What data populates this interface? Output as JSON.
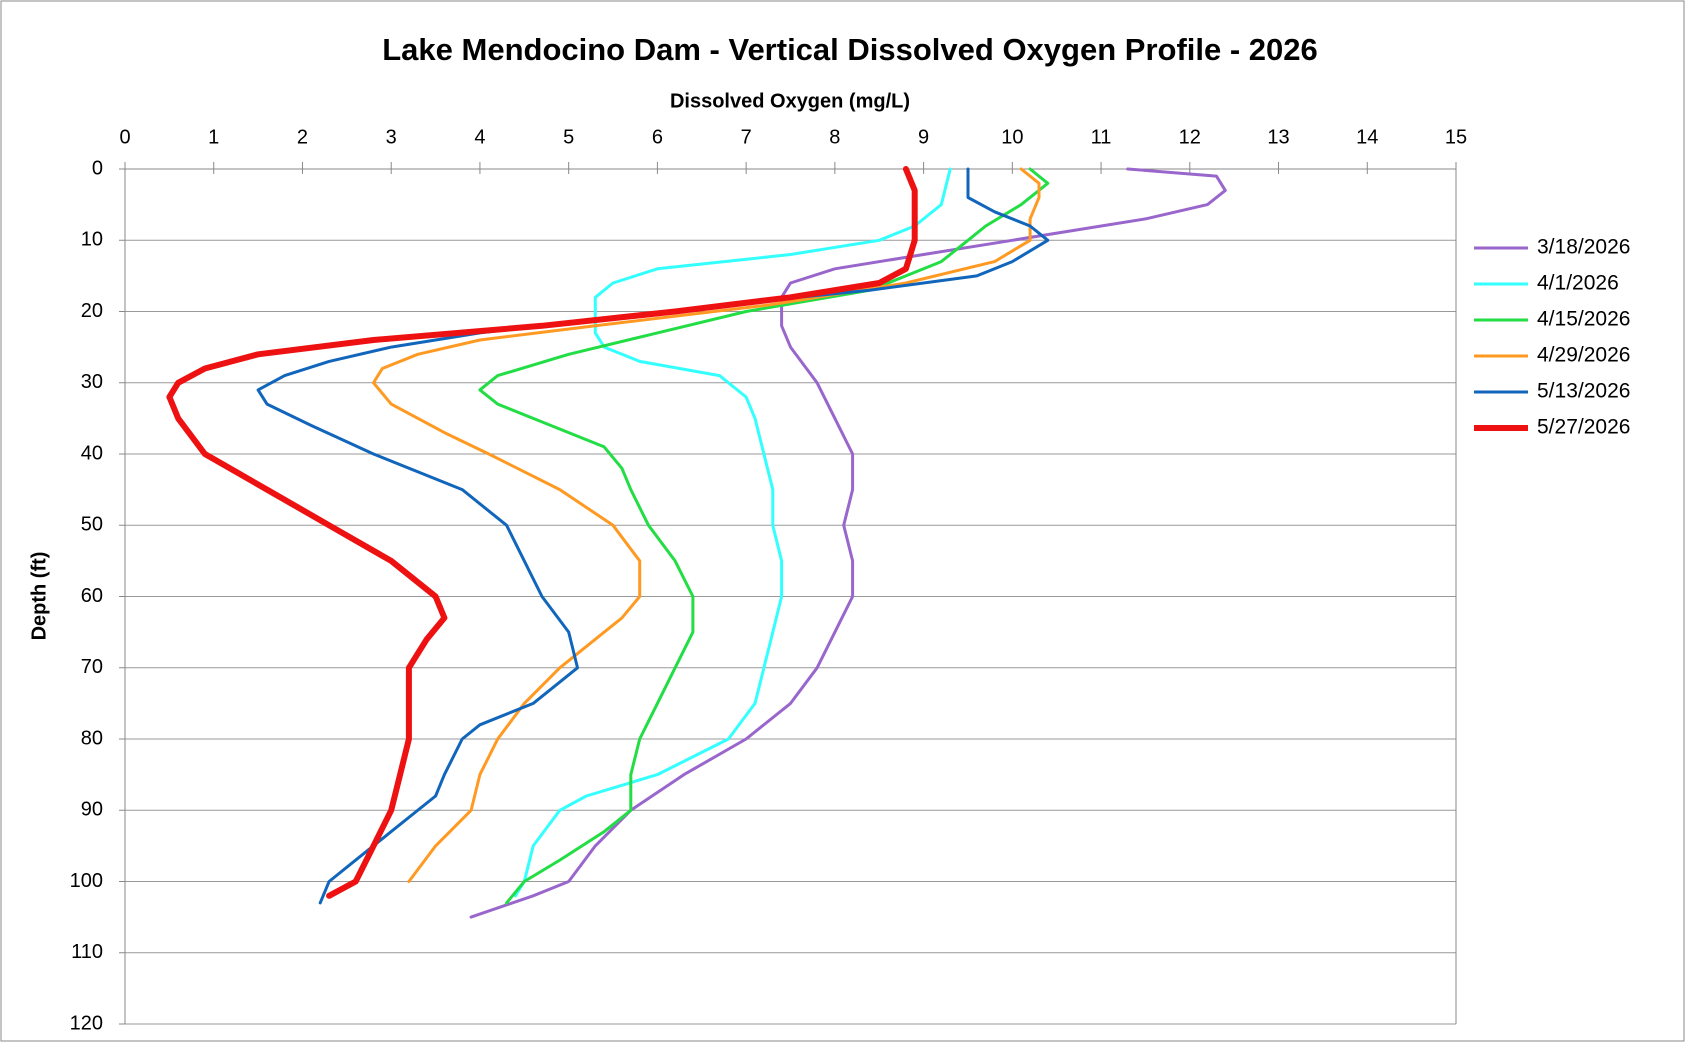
{
  "chart_data": {
    "type": "line",
    "title": "Lake Mendocino Dam - Vertical Dissolved Oxygen Profile - 2026",
    "x_label": "Dissolved Oxygen (mg/L)",
    "y_label": "Depth (ft)",
    "xlim": [
      0,
      15
    ],
    "xticks": [
      0,
      1,
      2,
      3,
      4,
      5,
      6,
      7,
      8,
      9,
      10,
      11,
      12,
      13,
      14,
      15
    ],
    "ylim": [
      0,
      120
    ],
    "yticks": [
      0,
      10,
      20,
      30,
      40,
      50,
      60,
      70,
      80,
      90,
      100,
      110,
      120
    ],
    "y_inverted": true,
    "grid": true,
    "legend": "right",
    "series": [
      {
        "name": "3/18/2026",
        "color": "#9966cc",
        "width": 3,
        "x": [
          11.3,
          12.3,
          12.4,
          12.2,
          11.5,
          10.0,
          9.0,
          8.0,
          7.5,
          7.4,
          7.4,
          7.4,
          7.5,
          7.8,
          8.0,
          8.2,
          8.2,
          8.1,
          8.2,
          8.2,
          8.0,
          7.8,
          7.5,
          7.0,
          6.3,
          5.7,
          5.3,
          5.0,
          4.6,
          3.9
        ],
        "values": [
          0,
          1,
          3,
          5,
          7,
          10,
          12,
          14,
          16,
          18,
          20,
          22,
          25,
          30,
          35,
          40,
          45,
          50,
          55,
          60,
          65,
          70,
          75,
          80,
          85,
          90,
          95,
          100,
          102,
          105
        ]
      },
      {
        "name": "4/1/2026",
        "color": "#33ffff",
        "width": 3,
        "x": [
          9.3,
          9.2,
          8.9,
          8.5,
          7.5,
          6.0,
          5.5,
          5.3,
          5.3,
          5.3,
          5.4,
          5.8,
          6.7,
          7.0,
          7.1,
          7.2,
          7.3,
          7.3,
          7.4,
          7.4,
          7.3,
          7.2,
          7.1,
          6.8,
          6.0,
          5.2,
          4.9,
          4.6,
          4.5,
          4.4
        ],
        "values": [
          0,
          5,
          8,
          10,
          12,
          14,
          16,
          18,
          20,
          23,
          25,
          27,
          29,
          32,
          35,
          40,
          45,
          50,
          55,
          60,
          65,
          70,
          75,
          80,
          85,
          88,
          90,
          95,
          100,
          102
        ]
      },
      {
        "name": "4/15/2026",
        "color": "#22dd44",
        "width": 3,
        "x": [
          10.2,
          10.4,
          10.1,
          9.7,
          9.5,
          9.2,
          8.8,
          8.4,
          7.0,
          6.0,
          5.0,
          4.2,
          4.0,
          4.2,
          4.8,
          5.4,
          5.6,
          5.7,
          5.9,
          6.2,
          6.4,
          6.4,
          6.2,
          6.0,
          5.8,
          5.7,
          5.7,
          5.4,
          4.9,
          4.5,
          4.3
        ],
        "values": [
          0,
          2,
          5,
          8,
          10,
          13,
          15,
          17,
          20,
          23,
          26,
          29,
          31,
          33,
          36,
          39,
          42,
          45,
          50,
          55,
          60,
          65,
          70,
          75,
          80,
          85,
          90,
          93,
          97,
          100,
          103
        ]
      },
      {
        "name": "4/29/2026",
        "color": "#ff9922",
        "width": 3,
        "x": [
          10.1,
          10.3,
          10.3,
          10.2,
          10.2,
          9.8,
          8.8,
          7.3,
          5.3,
          4.0,
          3.3,
          2.9,
          2.8,
          3.0,
          3.6,
          4.1,
          4.9,
          5.5,
          5.8,
          5.8,
          5.6,
          5.2,
          4.9,
          4.5,
          4.2,
          4.0,
          3.9,
          3.5,
          3.2
        ],
        "values": [
          0,
          2,
          4,
          7,
          10,
          13,
          16,
          19,
          22,
          24,
          26,
          28,
          30,
          33,
          37,
          40,
          45,
          50,
          55,
          60,
          63,
          67,
          70,
          75,
          80,
          85,
          90,
          95,
          100
        ]
      },
      {
        "name": "5/13/2026",
        "color": "#1166bb",
        "width": 3,
        "x": [
          9.5,
          9.5,
          9.8,
          10.2,
          10.4,
          10.0,
          9.6,
          8.4,
          6.8,
          5.4,
          4.0,
          3.0,
          2.3,
          1.8,
          1.5,
          1.6,
          2.1,
          2.8,
          3.8,
          4.3,
          4.5,
          4.7,
          5.0,
          5.1,
          4.6,
          4.0,
          3.8,
          3.6,
          3.5,
          3.0,
          2.6,
          2.3,
          2.2
        ],
        "values": [
          0,
          4,
          6,
          8,
          10,
          13,
          15,
          17,
          19,
          21,
          23,
          25,
          27,
          29,
          31,
          33,
          36,
          40,
          45,
          50,
          55,
          60,
          65,
          70,
          75,
          78,
          80,
          85,
          88,
          93,
          97,
          100,
          103
        ]
      },
      {
        "name": "5/27/2026",
        "color": "#ee1111",
        "width": 6,
        "x": [
          8.8,
          8.9,
          8.9,
          8.9,
          8.8,
          8.5,
          7.5,
          6.2,
          4.7,
          2.8,
          1.5,
          0.9,
          0.6,
          0.5,
          0.6,
          0.9,
          1.6,
          2.3,
          3.0,
          3.5,
          3.6,
          3.4,
          3.2,
          3.2,
          3.2,
          3.1,
          3.0,
          2.8,
          2.6,
          2.3
        ],
        "values": [
          0,
          3,
          5,
          10,
          14,
          16,
          18,
          20,
          22,
          24,
          26,
          28,
          30,
          32,
          35,
          40,
          45,
          50,
          55,
          60,
          63,
          66,
          70,
          75,
          80,
          85,
          90,
          95,
          100,
          102
        ]
      }
    ]
  }
}
